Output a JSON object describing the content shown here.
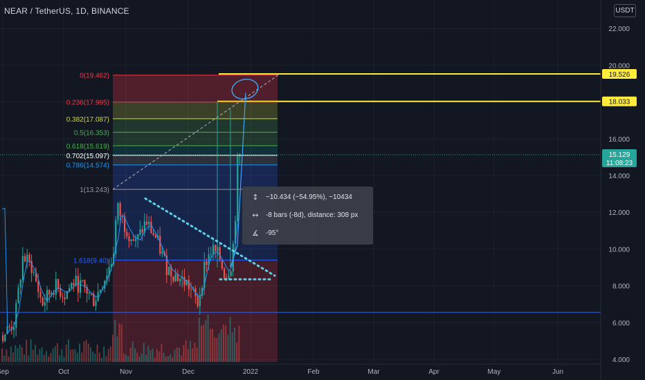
{
  "header": {
    "title": "NEAR / TetherUS, 1D, BINANCE",
    "currency": "USDT"
  },
  "chart_data": {
    "type": "candlestick",
    "symbol": "NEAR / TetherUS",
    "interval": "1D",
    "exchange": "BINANCE",
    "y_ticks": [
      "22.000",
      "20.000",
      "18.000",
      "16.000",
      "14.000",
      "12.000",
      "10.000",
      "8.000",
      "6.000",
      "4.000"
    ],
    "x_ticks": [
      "Sep",
      "Oct",
      "Nov",
      "Dec",
      "2022",
      "Feb",
      "Mar",
      "Apr",
      "May",
      "Jun"
    ],
    "ylim": [
      4,
      23.5
    ],
    "price_tags": [
      {
        "label": "19.526",
        "value": 19.526,
        "bg": "#ffeb3b",
        "fg": "#131722"
      },
      {
        "label": "18.033",
        "value": 18.033,
        "bg": "#ffeb3b",
        "fg": "#131722"
      },
      {
        "label": "15.129",
        "sub": "11:08:23",
        "value": 15.129,
        "bg": "#26a69a",
        "fg": "#ffffff"
      }
    ],
    "horizontal_lines": [
      19.526,
      18.033,
      6.55
    ],
    "fib_levels": [
      {
        "label": "0(19.462)",
        "ratio": "0",
        "price": 19.462,
        "color": "#f23645"
      },
      {
        "label": "0.236(17.995)",
        "ratio": "0.236",
        "price": 17.995,
        "color": "#f23645"
      },
      {
        "label": "0.382(17.087)",
        "ratio": "0.382",
        "price": 17.087,
        "color": "#cddc39"
      },
      {
        "label": "0.5(16.353)",
        "ratio": "0.5",
        "price": 16.353,
        "color": "#4caf50"
      },
      {
        "label": "0.618(15.619)",
        "ratio": "0.618",
        "price": 15.619,
        "color": "#4caf50"
      },
      {
        "label": "0.702(15.097)",
        "ratio": "0.702",
        "price": 15.097,
        "color": "#ffffff"
      },
      {
        "label": "0.786(14.574)",
        "ratio": "0.786",
        "price": 14.574,
        "color": "#2196f3"
      },
      {
        "label": "1(13.243)",
        "ratio": "1",
        "price": 13.243,
        "color": "#9598a1"
      },
      {
        "label": "1.618(9.40)",
        "ratio": "1.618",
        "price": 9.4,
        "color": "#2962ff"
      }
    ],
    "measure": {
      "price_change": "−10.434 (−54.95%), −10434",
      "bars": "-8 bars (-8d), distance: 308 px",
      "angle": "-95°"
    },
    "colors": {
      "up": "#26a69a",
      "down": "#ef5350",
      "accent": "#ffeb3b",
      "ma": "#2196f3",
      "pattern": "#5ad1e6"
    }
  }
}
